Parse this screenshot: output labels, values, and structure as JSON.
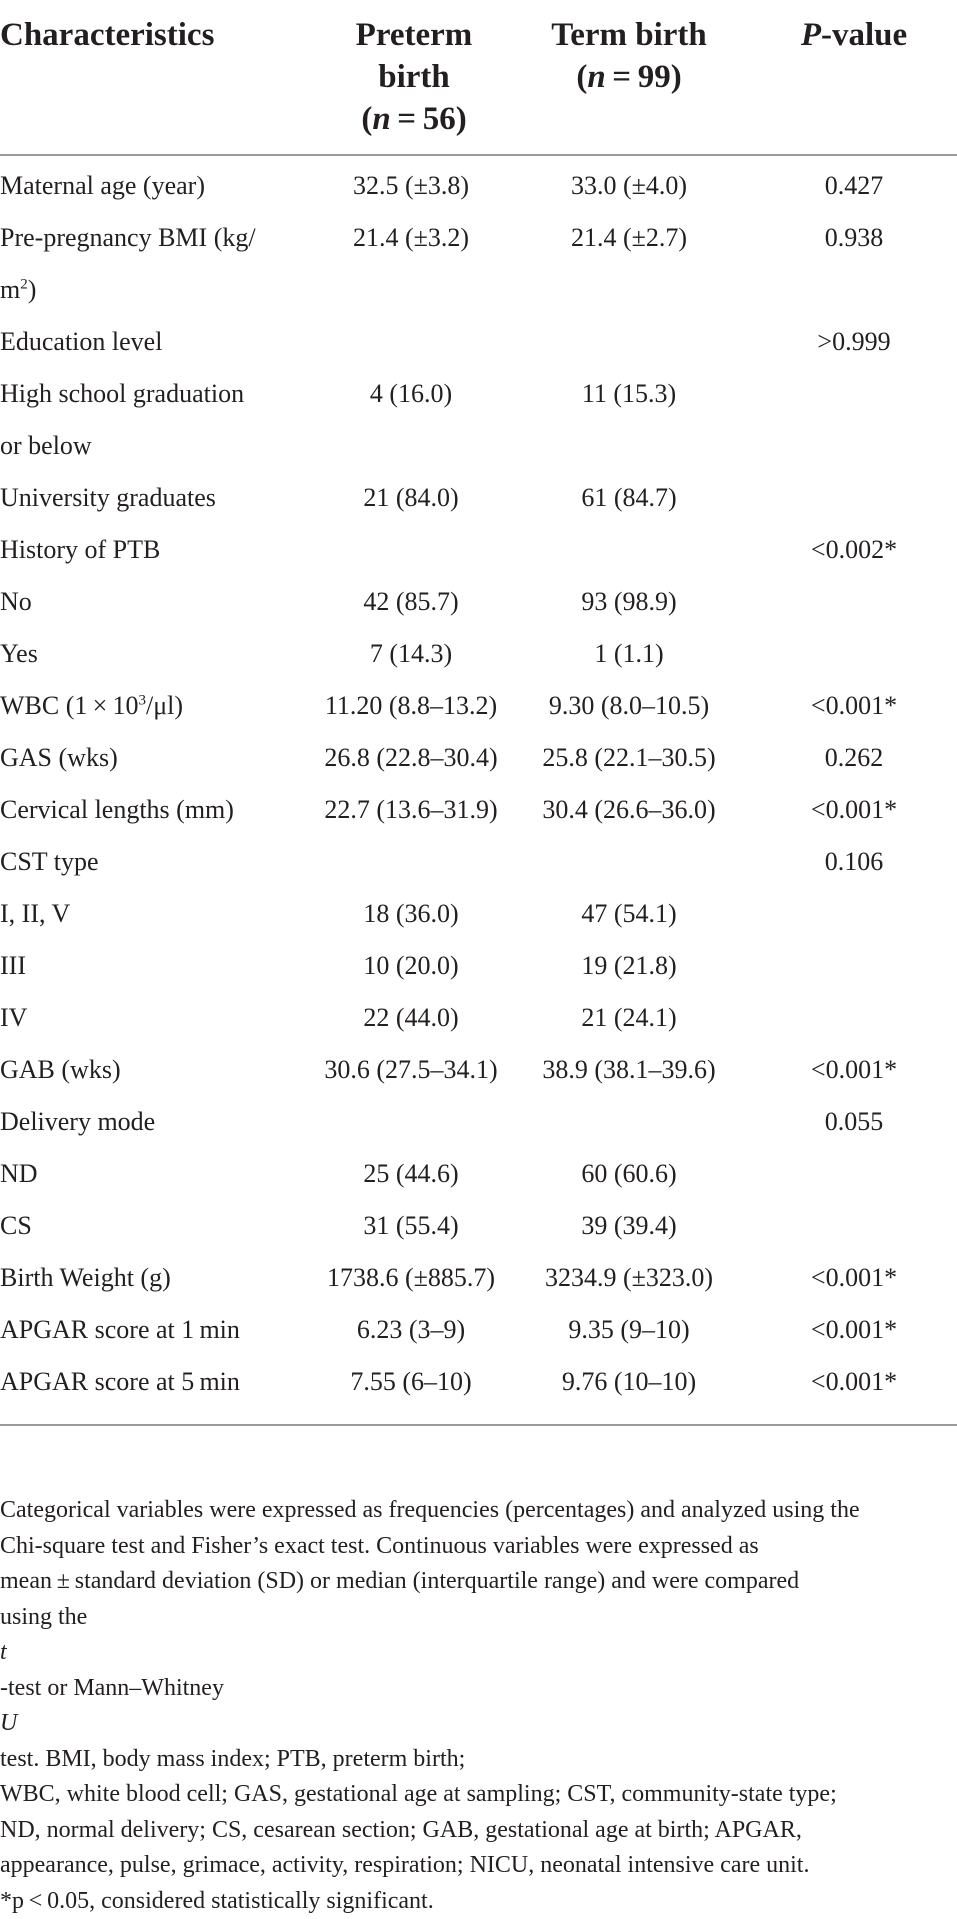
{
  "table": {
    "headers": {
      "characteristics": "Characteristics",
      "preterm": [
        "Preterm",
        "birth",
        "(n = 56)"
      ],
      "term": [
        "Term birth",
        "(n = 99)"
      ],
      "pvalue": "P-value"
    },
    "rows": [
      {
        "label": "Maternal age (year)",
        "preterm": "32.5 (±3.8)",
        "term": "33.0 (±4.0)",
        "p": "0.427"
      },
      {
        "label": "Pre-pregnancy BMI (kg/",
        "preterm": "21.4 (±3.2)",
        "term": "21.4 (±2.7)",
        "p": "0.938"
      },
      {
        "label": "m",
        "preterm": "",
        "term": "",
        "p": ""
      },
      {
        "label": "Education level",
        "preterm": "",
        "term": "",
        "p": ">0.999"
      },
      {
        "label": "High school graduation",
        "preterm": "4 (16.0)",
        "term": "11 (15.3)",
        "p": ""
      },
      {
        "label": "or below",
        "preterm": "",
        "term": "",
        "p": ""
      },
      {
        "label": "University graduates",
        "preterm": "21 (84.0)",
        "term": "61 (84.7)",
        "p": ""
      },
      {
        "label": "History of PTB",
        "preterm": "",
        "term": "",
        "p": "<0.002*"
      },
      {
        "label": "No",
        "preterm": "42 (85.7)",
        "term": "93 (98.9)",
        "p": ""
      },
      {
        "label": "Yes",
        "preterm": "7 (14.3)",
        "term": "1 (1.1)",
        "p": ""
      },
      {
        "label": "WBC (1 × 10",
        "preterm": "11.20 (8.8–13.2)",
        "term": "9.30 (8.0–10.5)",
        "p": "<0.001*"
      },
      {
        "label": "GAS (wks)",
        "preterm": "26.8 (22.8–30.4)",
        "term": "25.8 (22.1–30.5)",
        "p": "0.262"
      },
      {
        "label": "Cervical lengths (mm)",
        "preterm": "22.7 (13.6–31.9)",
        "term": "30.4 (26.6–36.0)",
        "p": "<0.001*"
      },
      {
        "label": "CST type",
        "preterm": "",
        "term": "",
        "p": "0.106"
      },
      {
        "label": "I, II, V",
        "preterm": "18 (36.0)",
        "term": "47 (54.1)",
        "p": ""
      },
      {
        "label": "III",
        "preterm": "10 (20.0)",
        "term": "19 (21.8)",
        "p": ""
      },
      {
        "label": "IV",
        "preterm": "22 (44.0)",
        "term": "21 (24.1)",
        "p": ""
      },
      {
        "label": "GAB (wks)",
        "preterm": "30.6 (27.5–34.1)",
        "term": "38.9 (38.1–39.6)",
        "p": "<0.001*"
      },
      {
        "label": "Delivery mode",
        "preterm": "",
        "term": "",
        "p": "0.055"
      },
      {
        "label": "ND",
        "preterm": "25 (44.6)",
        "term": "60 (60.6)",
        "p": ""
      },
      {
        "label": "CS",
        "preterm": "31 (55.4)",
        "term": "39 (39.4)",
        "p": ""
      },
      {
        "label": "Birth Weight (g)",
        "preterm": "1738.6 (±885.7)",
        "term": "3234.9 (±323.0)",
        "p": "<0.001*"
      },
      {
        "label": "APGAR score at 1 min",
        "preterm": "6.23 (3–9)",
        "term": "9.35 (9–10)",
        "p": "<0.001*"
      },
      {
        "label": "APGAR score at 5 min",
        "preterm": "7.55 (6–10)",
        "term": "9.76 (10–10)",
        "p": "<0.001*"
      }
    ],
    "superscripts": {
      "bmi": "2",
      "bmi_after": ")",
      "wbc": "3",
      "wbc_after": "/μl)"
    }
  },
  "footnote": [
    "Categorical variables were expressed as frequencies (percentages) and analyzed using the",
    "Chi-square test and Fisher’s exact test. Continuous variables were expressed as",
    "mean ± standard deviation (SD) or median (interquartile range) and were compared",
    "using the t-test or Mann–Whitney U test. BMI, body mass index; PTB, preterm birth;",
    "WBC, white blood cell; GAS, gestational age at sampling; CST, community-state type;",
    "ND, normal delivery; CS, cesarean section; GAB, gestational age at birth; APGAR,",
    "appearance, pulse, grimace, activity, respiration; NICU, neonatal intensive care unit.",
    "*p < 0.05, considered statistically significant."
  ]
}
